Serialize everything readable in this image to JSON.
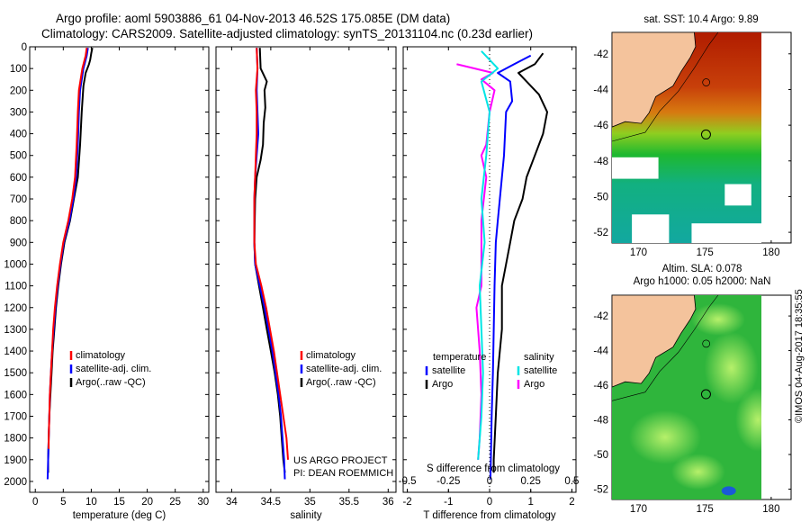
{
  "header": {
    "title_line1": "Argo profile: aoml 5903886_61 04-Nov-2013 46.52S 175.085E (DM data)",
    "title_line2": "Climatology: CARS2009. Satellite-adjusted climatology: synTS_20131104.nc (0.23d earlier)"
  },
  "timestamp": "©IMOS 04-Aug-2017 18:35:55",
  "colors": {
    "climatology": "#ff0000",
    "satellite": "#0000ff",
    "argo": "#000000",
    "s_satellite": "#00e5e5",
    "s_argo": "#ff00ff",
    "land": "#f4c39c"
  },
  "chart_data": [
    {
      "type": "line",
      "name": "temperature-profile",
      "xlabel": "temperature (deg C)",
      "ylabel": "",
      "xlim": [
        -1,
        31
      ],
      "ylim": [
        2050,
        0
      ],
      "xticks": [
        "0",
        "5",
        "10",
        "15",
        "20",
        "25",
        "30"
      ],
      "xtick_values": [
        0,
        5,
        10,
        15,
        20,
        25,
        30
      ],
      "yticks": [
        "0",
        "100",
        "200",
        "300",
        "400",
        "500",
        "600",
        "700",
        "800",
        "900",
        "1000",
        "1100",
        "1200",
        "1300",
        "1400",
        "1500",
        "1600",
        "1700",
        "1800",
        "1900",
        "2000"
      ],
      "ytick_values": [
        0,
        100,
        200,
        300,
        400,
        500,
        600,
        700,
        800,
        900,
        1000,
        1100,
        1200,
        1300,
        1400,
        1500,
        1600,
        1700,
        1800,
        1900,
        2000
      ],
      "legend": [
        "climatology",
        "satellite-adj. clim.",
        "Argo(..raw -QC)"
      ],
      "series": [
        {
          "name": "Argo",
          "color": "argo",
          "points": [
            [
              10.2,
              5
            ],
            [
              10,
              30
            ],
            [
              9.8,
              60
            ],
            [
              9.6,
              80
            ],
            [
              9,
              120
            ],
            [
              8.6,
              180
            ],
            [
              8.3,
              300
            ],
            [
              8,
              450
            ],
            [
              7.6,
              600
            ],
            [
              6.9,
              700
            ],
            [
              6.2,
              800
            ],
            [
              5.2,
              900
            ],
            [
              4.6,
              1000
            ],
            [
              4.1,
              1100
            ],
            [
              3.7,
              1200
            ],
            [
              3.4,
              1300
            ],
            [
              3.1,
              1400
            ],
            [
              2.9,
              1500
            ],
            [
              2.7,
              1600
            ],
            [
              2.5,
              1700
            ],
            [
              2.4,
              1800
            ],
            [
              2.3,
              1900
            ],
            [
              2.3,
              1960
            ]
          ]
        },
        {
          "name": "satellite",
          "color": "satellite",
          "points": [
            [
              9.4,
              5
            ],
            [
              9.2,
              40
            ],
            [
              8.6,
              100
            ],
            [
              8,
              200
            ],
            [
              7.8,
              300
            ],
            [
              7.6,
              450
            ],
            [
              7.3,
              600
            ],
            [
              6.8,
              700
            ],
            [
              6.1,
              800
            ],
            [
              5.1,
              900
            ],
            [
              4.5,
              1000
            ],
            [
              4,
              1100
            ],
            [
              3.6,
              1200
            ],
            [
              3.3,
              1300
            ],
            [
              3,
              1400
            ],
            [
              2.8,
              1500
            ],
            [
              2.6,
              1600
            ],
            [
              2.5,
              1700
            ],
            [
              2.4,
              1800
            ],
            [
              2.3,
              1900
            ],
            [
              2.2,
              1990
            ]
          ]
        },
        {
          "name": "climatology",
          "color": "climatology",
          "points": [
            [
              9.2,
              5
            ],
            [
              9,
              40
            ],
            [
              8.4,
              100
            ],
            [
              7.8,
              200
            ],
            [
              7.6,
              300
            ],
            [
              7.4,
              450
            ],
            [
              7.1,
              600
            ],
            [
              6.6,
              700
            ],
            [
              5.9,
              800
            ],
            [
              5,
              900
            ],
            [
              4.4,
              1000
            ],
            [
              3.9,
              1100
            ],
            [
              3.5,
              1200
            ],
            [
              3.2,
              1300
            ],
            [
              3,
              1400
            ],
            [
              2.8,
              1500
            ],
            [
              2.6,
              1600
            ],
            [
              2.5,
              1700
            ],
            [
              2.4,
              1800
            ],
            [
              2.4,
              1850
            ]
          ]
        }
      ]
    },
    {
      "type": "line",
      "name": "salinity-profile",
      "xlabel": "salinity",
      "xlim": [
        33.8,
        36.1
      ],
      "ylim": [
        2050,
        0
      ],
      "xticks": [
        "34",
        "34.5",
        "35",
        "35.5",
        "36"
      ],
      "xtick_values": [
        34,
        34.5,
        35,
        35.5,
        36
      ],
      "legend": [
        "climatology",
        "satellite-adj. clim.",
        "Argo(..raw -QC)"
      ],
      "annotations": [
        "US ARGO PROJECT",
        "PI: DEAN ROEMMICH"
      ],
      "series": [
        {
          "name": "Argo",
          "color": "argo",
          "points": [
            [
              34.36,
              5
            ],
            [
              34.37,
              100
            ],
            [
              34.45,
              160
            ],
            [
              34.42,
              200
            ],
            [
              34.43,
              280
            ],
            [
              34.41,
              350
            ],
            [
              34.4,
              450
            ],
            [
              34.37,
              520
            ],
            [
              34.32,
              600
            ],
            [
              34.3,
              700
            ],
            [
              34.29,
              900
            ],
            [
              34.3,
              1000
            ],
            [
              34.35,
              1100
            ],
            [
              34.4,
              1200
            ],
            [
              34.45,
              1300
            ],
            [
              34.5,
              1400
            ],
            [
              34.55,
              1500
            ],
            [
              34.59,
              1600
            ],
            [
              34.62,
              1700
            ],
            [
              34.64,
              1800
            ],
            [
              34.66,
              1900
            ],
            [
              34.68,
              1960
            ]
          ]
        },
        {
          "name": "satellite",
          "color": "satellite",
          "points": [
            [
              34.32,
              5
            ],
            [
              34.33,
              100
            ],
            [
              34.32,
              200
            ],
            [
              34.33,
              300
            ],
            [
              34.34,
              400
            ],
            [
              34.32,
              500
            ],
            [
              34.3,
              600
            ],
            [
              34.29,
              700
            ],
            [
              34.29,
              900
            ],
            [
              34.3,
              1000
            ],
            [
              34.36,
              1100
            ],
            [
              34.42,
              1200
            ],
            [
              34.47,
              1300
            ],
            [
              34.52,
              1400
            ],
            [
              34.56,
              1500
            ],
            [
              34.6,
              1600
            ],
            [
              34.63,
              1700
            ],
            [
              34.65,
              1800
            ],
            [
              34.67,
              1900
            ],
            [
              34.68,
              1990
            ]
          ]
        },
        {
          "name": "climatology",
          "color": "climatology",
          "points": [
            [
              34.32,
              5
            ],
            [
              34.33,
              100
            ],
            [
              34.31,
              200
            ],
            [
              34.32,
              300
            ],
            [
              34.32,
              400
            ],
            [
              34.31,
              500
            ],
            [
              34.3,
              600
            ],
            [
              34.29,
              700
            ],
            [
              34.29,
              900
            ],
            [
              34.31,
              1000
            ],
            [
              34.38,
              1100
            ],
            [
              34.44,
              1200
            ],
            [
              34.49,
              1300
            ],
            [
              34.54,
              1400
            ],
            [
              34.58,
              1500
            ],
            [
              34.62,
              1600
            ],
            [
              34.66,
              1700
            ],
            [
              34.7,
              1800
            ],
            [
              34.72,
              1900
            ]
          ]
        }
      ]
    },
    {
      "type": "line",
      "name": "difference-profile",
      "xlabel": "T difference from climatology",
      "xlabel_top": "S difference from climatology",
      "xlim": [
        -2.1,
        2.1
      ],
      "ylim": [
        2050,
        0
      ],
      "xticks": [
        "-2",
        "-1",
        "0",
        "1",
        "2"
      ],
      "xtick_values": [
        -2,
        -1,
        0,
        1,
        2
      ],
      "sticks": [
        "-0.5",
        "-0.25",
        "0",
        "0.25",
        "0.5"
      ],
      "stick_values": [
        -0.5,
        -0.25,
        0,
        0.25,
        0.5
      ],
      "legend_headers": [
        "temperature",
        "salinity"
      ],
      "legend_left": [
        "satellite",
        "Argo"
      ],
      "legend_right": [
        "satellite",
        "Argo"
      ],
      "series": [
        {
          "name": "T Argo diff",
          "color": "argo",
          "points": [
            [
              1.3,
              30
            ],
            [
              1.1,
              80
            ],
            [
              0.7,
              120
            ],
            [
              0.9,
              160
            ],
            [
              1.2,
              220
            ],
            [
              1.4,
              300
            ],
            [
              1.3,
              400
            ],
            [
              1.1,
              500
            ],
            [
              0.9,
              600
            ],
            [
              0.8,
              700
            ],
            [
              0.6,
              800
            ],
            [
              0.5,
              900
            ],
            [
              0.4,
              1000
            ],
            [
              0.3,
              1100
            ],
            [
              0.3,
              1300
            ],
            [
              0.2,
              1500
            ],
            [
              0.15,
              1700
            ],
            [
              0.1,
              1900
            ],
            [
              0.1,
              1960
            ]
          ]
        },
        {
          "name": "T satellite diff",
          "color": "satellite",
          "points": [
            [
              1.0,
              40
            ],
            [
              0.6,
              80
            ],
            [
              0.2,
              120
            ],
            [
              0.5,
              160
            ],
            [
              0.55,
              250
            ],
            [
              0.4,
              300
            ],
            [
              0.35,
              500
            ],
            [
              0.3,
              600
            ],
            [
              0.25,
              700
            ],
            [
              0.2,
              800
            ],
            [
              0.15,
              900
            ],
            [
              0.12,
              1100
            ],
            [
              0.1,
              1300
            ],
            [
              0.08,
              1500
            ],
            [
              0.05,
              1700
            ],
            [
              0.03,
              1900
            ],
            [
              0.02,
              1990
            ]
          ]
        },
        {
          "name": "S Argo diff",
          "color": "s_argo",
          "points": [
            [
              -0.2,
              80
            ],
            [
              0.02,
              120
            ],
            [
              -0.05,
              150
            ],
            [
              0.03,
              200
            ],
            [
              0,
              300
            ],
            [
              -0.02,
              450
            ],
            [
              -0.05,
              500
            ],
            [
              -0.02,
              600
            ],
            [
              -0.05,
              800
            ],
            [
              -0.05,
              1100
            ],
            [
              -0.08,
              1200
            ],
            [
              -0.06,
              1400
            ],
            [
              -0.05,
              1600
            ],
            [
              -0.06,
              1800
            ],
            [
              -0.07,
              1900
            ]
          ]
        },
        {
          "name": "S satellite diff",
          "color": "s_satellite",
          "points": [
            [
              -0.05,
              20
            ],
            [
              0.05,
              100
            ],
            [
              -0.05,
              160
            ],
            [
              0,
              300
            ],
            [
              -0.02,
              500
            ],
            [
              -0.05,
              700
            ],
            [
              -0.03,
              900
            ],
            [
              -0.06,
              1100
            ],
            [
              -0.05,
              1300
            ],
            [
              -0.04,
              1500
            ],
            [
              -0.05,
              1700
            ],
            [
              -0.07,
              1900
            ]
          ]
        }
      ]
    },
    {
      "type": "heatmap",
      "name": "sst-map",
      "title": "sat. SST: 10.4 Argo: 9.89",
      "xlim": [
        168,
        181.5
      ],
      "ylim": [
        -52.6,
        -40.8
      ],
      "xticks": [
        "170",
        "175",
        "180"
      ],
      "xtick_values": [
        170,
        175,
        180
      ],
      "yticks": [
        "-42",
        "-44",
        "-46",
        "-48",
        "-50",
        "-52"
      ],
      "ytick_values": [
        -42,
        -44,
        -46,
        -48,
        -50,
        -52
      ],
      "argo_location": [
        175.085,
        -46.52
      ]
    },
    {
      "type": "heatmap",
      "name": "sla-map",
      "title_line1": "Altim. SLA: 0.078",
      "title_line2": "Argo h1000: 0.05 h2000: NaN",
      "xlim": [
        168,
        181.5
      ],
      "ylim": [
        -52.6,
        -40.8
      ],
      "xticks": [
        "170",
        "175",
        "180"
      ],
      "xtick_values": [
        170,
        175,
        180
      ],
      "yticks": [
        "-42",
        "-44",
        "-46",
        "-48",
        "-50",
        "-52"
      ],
      "ytick_values": [
        -42,
        -44,
        -46,
        -48,
        -50,
        -52
      ],
      "argo_location": [
        175.085,
        -46.52
      ]
    }
  ]
}
